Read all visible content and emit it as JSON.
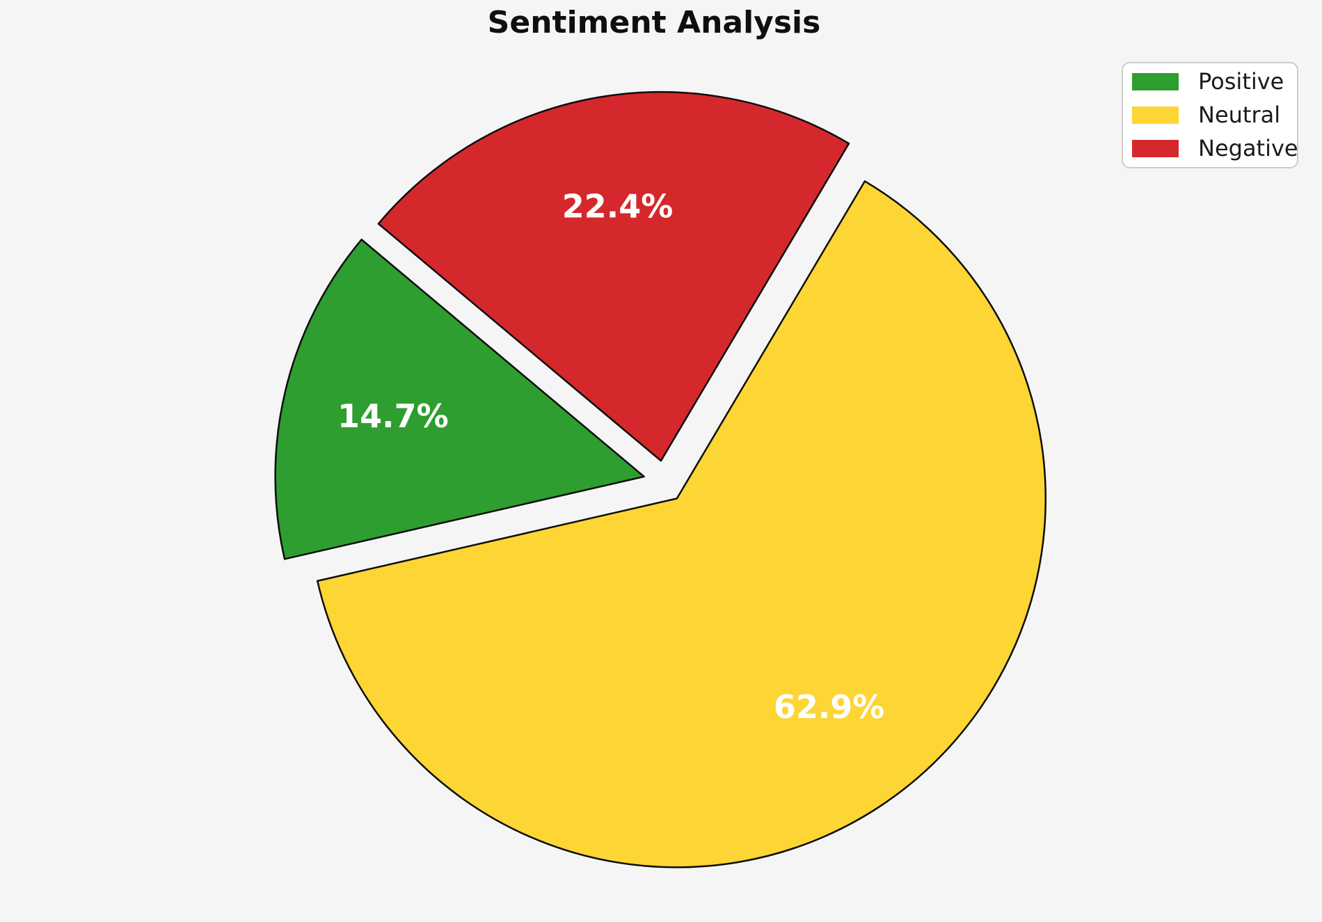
{
  "figure": {
    "background_color": "#f5f5f6"
  },
  "chart_data": {
    "type": "pie",
    "title": "Sentiment Analysis",
    "categories": [
      "Positive",
      "Neutral",
      "Negative"
    ],
    "values": [
      14.7,
      62.9,
      22.4
    ],
    "slice_labels": [
      "14.7%",
      "62.9%",
      "22.4%"
    ],
    "colors": [
      "#2d9e2f",
      "#fdd534",
      "#d5282c"
    ],
    "edge_color": "#0d0d0d",
    "pct_label_color": "#ffffff",
    "start_angle_deg": 140,
    "direction": "counterclockwise",
    "explode_fraction": [
      0.057,
      0.057,
      0.057
    ],
    "pct_distance": 0.7,
    "legend": {
      "position": "upper-right",
      "entries": [
        "Positive",
        "Neutral",
        "Negative"
      ]
    }
  }
}
